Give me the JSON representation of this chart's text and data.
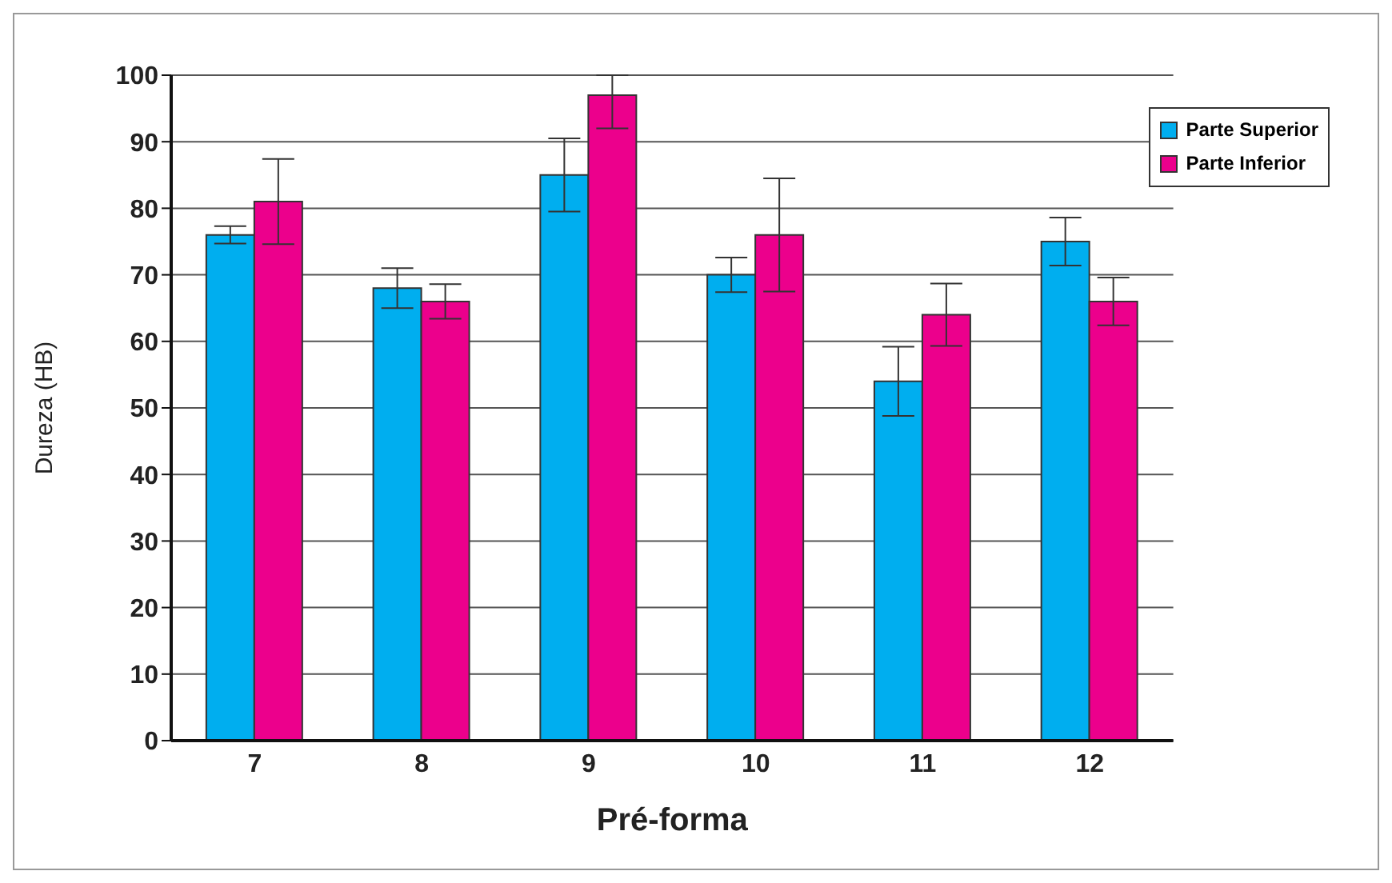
{
  "chart_data": {
    "type": "bar",
    "xlabel": "Pré-forma",
    "ylabel": "Dureza (HB)",
    "categories": [
      "7",
      "8",
      "9",
      "10",
      "11",
      "12"
    ],
    "series": [
      {
        "name": "Parte Superior",
        "color": "#00aeef",
        "values": [
          76,
          68,
          85,
          70,
          54,
          75
        ],
        "errors": [
          1.3,
          3,
          5.5,
          2.6,
          5.2,
          3.6
        ]
      },
      {
        "name": "Parte Inferior",
        "color": "#ec008c",
        "values": [
          81,
          66,
          97,
          76,
          64,
          66
        ],
        "errors": [
          6.4,
          2.6,
          [
            92,
            100
          ],
          8.5,
          4.7,
          3.6
        ]
      }
    ],
    "ylim": [
      0,
      100
    ],
    "yticks": [
      0,
      10,
      20,
      30,
      40,
      50,
      60,
      70,
      80,
      90,
      100
    ],
    "grid": "y",
    "legend": "top right"
  }
}
